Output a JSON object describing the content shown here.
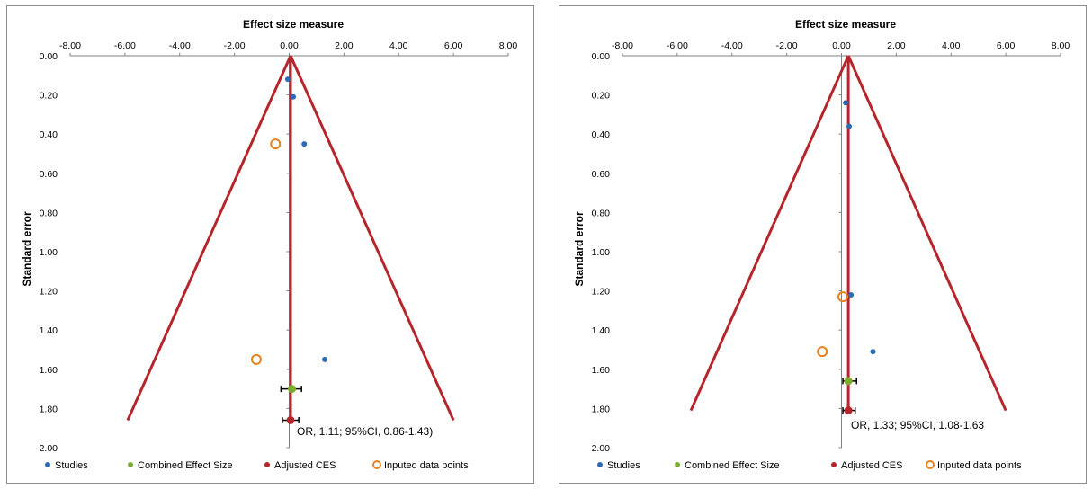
{
  "colors": {
    "studies": "#2e6bb5",
    "combined": "#7dad2f",
    "adjusted": "#b5262c",
    "imputed": "#e8821f",
    "funnel": "#b5262c",
    "axis": "#808080"
  },
  "chart_data": [
    {
      "type": "scatter",
      "title": "Effect size measure",
      "xlabel": "Effect size measure",
      "ylabel": "Standard error",
      "xlim": [
        -8,
        8
      ],
      "ylim": [
        0,
        2
      ],
      "y_inverted": true,
      "x_ticks": [
        "-8.00",
        "-6.00",
        "-4.00",
        "-2.00",
        "0.00",
        "2.00",
        "4.00",
        "6.00",
        "8.00"
      ],
      "y_ticks": [
        "0.00",
        "0.20",
        "0.40",
        "0.60",
        "0.80",
        "1.00",
        "1.20",
        "1.40",
        "1.60",
        "1.80",
        "2.00"
      ],
      "funnel": {
        "apex": [
          0.05,
          0.0
        ],
        "left_end": [
          -5.9,
          1.86
        ],
        "right_end": [
          6.0,
          1.86
        ]
      },
      "combined_effect_line_x": 0.05,
      "series": [
        {
          "name": "Studies",
          "points": [
            [
              -0.05,
              0.12
            ],
            [
              0.15,
              0.21
            ],
            [
              0.55,
              0.45
            ],
            [
              1.3,
              1.55
            ]
          ]
        },
        {
          "name": "Combined Effect Size",
          "points": [
            [
              0.1,
              1.7
            ]
          ],
          "ci": [
            -0.3,
            0.45
          ]
        },
        {
          "name": "Adjusted CES",
          "points": [
            [
              0.05,
              1.86
            ]
          ],
          "ci": [
            -0.25,
            0.35
          ]
        },
        {
          "name": "Inputed data points",
          "points": [
            [
              -0.5,
              0.45
            ],
            [
              -1.2,
              1.55
            ]
          ]
        }
      ],
      "annotation": "OR, 1.11; 95%CI, 0.86-1.43)",
      "legend": [
        "Studies",
        "Combined Effect Size",
        "Adjusted CES",
        "Inputed data points"
      ],
      "legend_position": "bottom"
    },
    {
      "type": "scatter",
      "title": "Effect size measure",
      "xlabel": "Effect size measure",
      "ylabel": "Standard error",
      "xlim": [
        -8,
        8
      ],
      "ylim": [
        0,
        2
      ],
      "y_inverted": true,
      "x_ticks": [
        "-8.00",
        "-6.00",
        "-4.00",
        "-2.00",
        "0.00",
        "2.00",
        "4.00",
        "6.00",
        "8.00"
      ],
      "y_ticks": [
        "0.00",
        "0.20",
        "0.40",
        "0.60",
        "0.80",
        "1.00",
        "1.20",
        "1.40",
        "1.60",
        "1.80",
        "2.00"
      ],
      "funnel": {
        "apex": [
          0.25,
          0.0
        ],
        "left_end": [
          -5.5,
          1.81
        ],
        "right_end": [
          6.0,
          1.81
        ]
      },
      "combined_effect_line_x": 0.25,
      "series": [
        {
          "name": "Studies",
          "points": [
            [
              0.15,
              0.24
            ],
            [
              0.28,
              0.36
            ],
            [
              0.35,
              1.22
            ],
            [
              1.15,
              1.51
            ]
          ]
        },
        {
          "name": "Combined Effect Size",
          "points": [
            [
              0.25,
              1.66
            ]
          ],
          "ci": [
            0.05,
            0.55
          ]
        },
        {
          "name": "Adjusted CES",
          "points": [
            [
              0.25,
              1.81
            ]
          ],
          "ci": [
            0.05,
            0.5
          ]
        },
        {
          "name": "Inputed data points",
          "points": [
            [
              0.05,
              1.23
            ],
            [
              -0.7,
              1.51
            ]
          ]
        }
      ],
      "annotation": "OR, 1.33; 95%CI, 1.08-1.63",
      "legend": [
        "Studies",
        "Combined Effect Size",
        "Adjusted CES",
        "Inputed data points"
      ],
      "legend_position": "bottom"
    }
  ]
}
